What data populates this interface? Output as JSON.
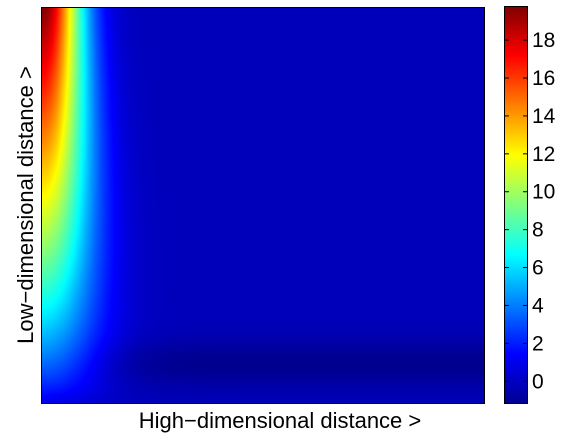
{
  "chart_data": {
    "type": "heatmap",
    "title": "",
    "xlabel": "High−dimensional distance >",
    "ylabel": "Low−dimensional distance >",
    "x_ticks": [],
    "y_ticks": [],
    "grid": false,
    "colormap": "jet",
    "colorbar": {
      "range": [
        -1.2,
        19.8
      ],
      "ticks": [
        0,
        2,
        4,
        6,
        8,
        10,
        12,
        14,
        16,
        18
      ],
      "tick_labels": [
        "0",
        "2",
        "4",
        "6",
        "8",
        "10",
        "12",
        "14",
        "16",
        "18"
      ]
    },
    "surface_samples": {
      "description_axes": "rows: low-dim distance from top (large) to bottom (small); columns: high-dim distance from left (small) to right (large)",
      "row_fractions_from_top": [
        0.0,
        0.25,
        0.5,
        0.75,
        0.9,
        1.0
      ],
      "col_fractions_from_left": [
        0.0,
        0.06,
        0.12,
        0.2,
        0.5,
        1.0
      ],
      "values": [
        [
          19.5,
          11.5,
          3.5,
          0.0,
          0.0,
          0.0
        ],
        [
          16.0,
          8.0,
          2.5,
          0.0,
          0.0,
          0.0
        ],
        [
          11.0,
          6.0,
          2.0,
          0.0,
          0.0,
          0.0
        ],
        [
          5.5,
          3.5,
          1.0,
          0.0,
          0.0,
          0.0
        ],
        [
          1.5,
          1.0,
          0.0,
          -0.5,
          -1.0,
          -1.0
        ],
        [
          0.0,
          0.0,
          0.0,
          -0.3,
          -0.6,
          -0.6
        ]
      ]
    }
  }
}
